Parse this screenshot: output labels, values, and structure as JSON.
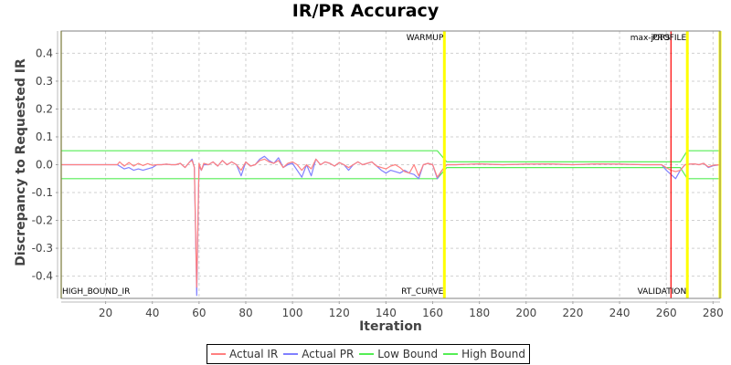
{
  "chart_data": {
    "type": "line",
    "title": "IR/PR Accuracy",
    "xlabel": "Iteration",
    "ylabel": "Discrepancy to Requested IR",
    "xlim": [
      1,
      283
    ],
    "ylim": [
      -0.48,
      0.48
    ],
    "x_ticks": [
      20,
      40,
      60,
      80,
      100,
      120,
      140,
      160,
      180,
      200,
      220,
      240,
      260,
      280
    ],
    "y_ticks": [
      0.4,
      0.3,
      0.2,
      0.1,
      0.0,
      -0.1,
      -0.2,
      -0.3,
      -0.4
    ],
    "y_tick_labels": [
      "0.4",
      "0.3",
      "0.2",
      "0.1",
      "0.0",
      "-0.1",
      "-0.2",
      "-0.3",
      "-0.4"
    ],
    "grid": true,
    "legend_position": "bottom",
    "legend": [
      "Actual IR",
      "Actual PR",
      "Low Bound",
      "High Bound"
    ],
    "colors": {
      "actual_ir": "#ff8080",
      "actual_pr": "#8080ff",
      "low_bound": "#55ee55",
      "high_bound": "#55ee55",
      "marker_yellow": "#ffff00",
      "marker_red": "#ff0000"
    },
    "markers": [
      {
        "x": 165,
        "top_label": "WARMUP",
        "bottom_label": "RT_CURVE",
        "color": "#ffff00"
      },
      {
        "x": 262,
        "top_label": "max-jOPS",
        "bottom_label": "",
        "color": "#ff0000"
      },
      {
        "x": 269,
        "top_label": "PROFILE",
        "bottom_label": "VALIDATION",
        "color": "#ffff00"
      },
      {
        "x": 283,
        "top_label": "",
        "bottom_label": "",
        "color": "#ffff00"
      }
    ],
    "corner_label": "HIGH_BOUND_IR",
    "series": [
      {
        "name": "High Bound",
        "x": [
          1,
          162,
          166,
          266,
          269,
          283
        ],
        "values": [
          0.05,
          0.05,
          0.01,
          0.01,
          0.05,
          0.05
        ]
      },
      {
        "name": "Low Bound",
        "x": [
          1,
          162,
          166,
          266,
          269,
          283
        ],
        "values": [
          -0.05,
          -0.05,
          -0.01,
          -0.01,
          -0.05,
          -0.05
        ]
      },
      {
        "name": "Actual IR",
        "x": [
          1,
          25,
          26,
          28,
          30,
          32,
          34,
          36,
          38,
          40,
          42,
          44,
          46,
          48,
          50,
          52,
          54,
          56,
          57,
          58,
          59,
          60,
          61,
          62,
          64,
          66,
          68,
          70,
          72,
          74,
          76,
          78,
          80,
          82,
          84,
          86,
          88,
          90,
          92,
          94,
          96,
          98,
          100,
          102,
          104,
          106,
          108,
          110,
          112,
          114,
          116,
          118,
          120,
          122,
          124,
          126,
          128,
          130,
          132,
          134,
          136,
          138,
          140,
          142,
          144,
          146,
          148,
          150,
          152,
          154,
          156,
          158,
          160,
          162,
          164,
          166,
          170,
          180,
          190,
          200,
          210,
          220,
          230,
          240,
          250,
          258,
          260,
          262,
          264,
          266,
          268,
          270,
          272,
          274,
          276,
          278,
          280,
          283
        ],
        "values": [
          0.0,
          0.0,
          0.01,
          -0.005,
          0.008,
          -0.005,
          0.005,
          -0.003,
          0.004,
          -0.002,
          0.0,
          0.0,
          0.002,
          0.0,
          0.0,
          0.005,
          -0.01,
          0.01,
          0.015,
          -0.01,
          -0.44,
          0.005,
          -0.02,
          0.005,
          0.0,
          0.01,
          -0.005,
          0.015,
          0.0,
          0.01,
          0.0,
          -0.02,
          0.01,
          -0.005,
          0.0,
          0.015,
          0.02,
          0.01,
          0.005,
          0.015,
          -0.01,
          0.005,
          0.01,
          0.0,
          -0.02,
          0.0,
          -0.015,
          0.02,
          0.0,
          0.01,
          0.005,
          -0.005,
          0.008,
          0.0,
          -0.01,
          0.0,
          0.01,
          0.0,
          0.005,
          0.01,
          -0.005,
          -0.01,
          -0.015,
          -0.005,
          0.0,
          -0.01,
          -0.025,
          -0.03,
          0.0,
          -0.04,
          0.0,
          0.005,
          0.0,
          -0.045,
          -0.02,
          0.0,
          0.0,
          0.003,
          0.0,
          0.002,
          0.003,
          0.0,
          0.003,
          0.002,
          0.0,
          0.0,
          -0.01,
          -0.02,
          -0.025,
          -0.02,
          0.0,
          0.002,
          0.003,
          0.0,
          0.005,
          -0.008,
          -0.002,
          0.0
        ]
      },
      {
        "name": "Actual PR",
        "x": [
          1,
          25,
          26,
          28,
          30,
          32,
          34,
          36,
          38,
          40,
          42,
          44,
          46,
          48,
          50,
          52,
          54,
          56,
          57,
          58,
          59,
          60,
          61,
          62,
          64,
          66,
          68,
          70,
          72,
          74,
          76,
          78,
          80,
          82,
          84,
          86,
          88,
          90,
          92,
          94,
          96,
          98,
          100,
          102,
          104,
          106,
          108,
          110,
          112,
          114,
          116,
          118,
          120,
          122,
          124,
          126,
          128,
          130,
          132,
          134,
          136,
          138,
          140,
          142,
          144,
          146,
          148,
          150,
          152,
          154,
          156,
          158,
          160,
          162,
          164,
          166,
          170,
          180,
          190,
          200,
          210,
          220,
          230,
          240,
          250,
          258,
          260,
          262,
          264,
          266,
          268,
          270,
          272,
          274,
          276,
          278,
          280,
          283
        ],
        "values": [
          0.0,
          0.0,
          -0.005,
          -0.015,
          -0.01,
          -0.02,
          -0.015,
          -0.02,
          -0.015,
          -0.01,
          0.0,
          0.0,
          0.002,
          0.0,
          0.0,
          0.005,
          -0.01,
          0.01,
          0.02,
          -0.01,
          -0.47,
          -0.005,
          -0.02,
          0.0,
          0.0,
          0.01,
          -0.005,
          0.015,
          0.0,
          0.01,
          0.0,
          -0.04,
          0.01,
          -0.005,
          0.0,
          0.02,
          0.03,
          0.015,
          0.005,
          0.025,
          -0.01,
          0.0,
          0.005,
          -0.02,
          -0.045,
          0.0,
          -0.04,
          0.02,
          0.0,
          0.01,
          0.005,
          -0.005,
          0.008,
          0.0,
          -0.02,
          0.0,
          0.01,
          0.0,
          0.005,
          0.01,
          -0.005,
          -0.02,
          -0.03,
          -0.02,
          -0.025,
          -0.03,
          -0.02,
          -0.03,
          -0.035,
          -0.05,
          0.0,
          0.005,
          0.0,
          -0.05,
          -0.02,
          0.0,
          0.0,
          0.003,
          0.0,
          0.002,
          0.003,
          0.0,
          0.003,
          0.002,
          0.0,
          0.0,
          -0.02,
          -0.035,
          -0.05,
          -0.02,
          0.0,
          0.002,
          0.003,
          0.0,
          0.005,
          -0.01,
          -0.004,
          0.0
        ]
      }
    ]
  }
}
